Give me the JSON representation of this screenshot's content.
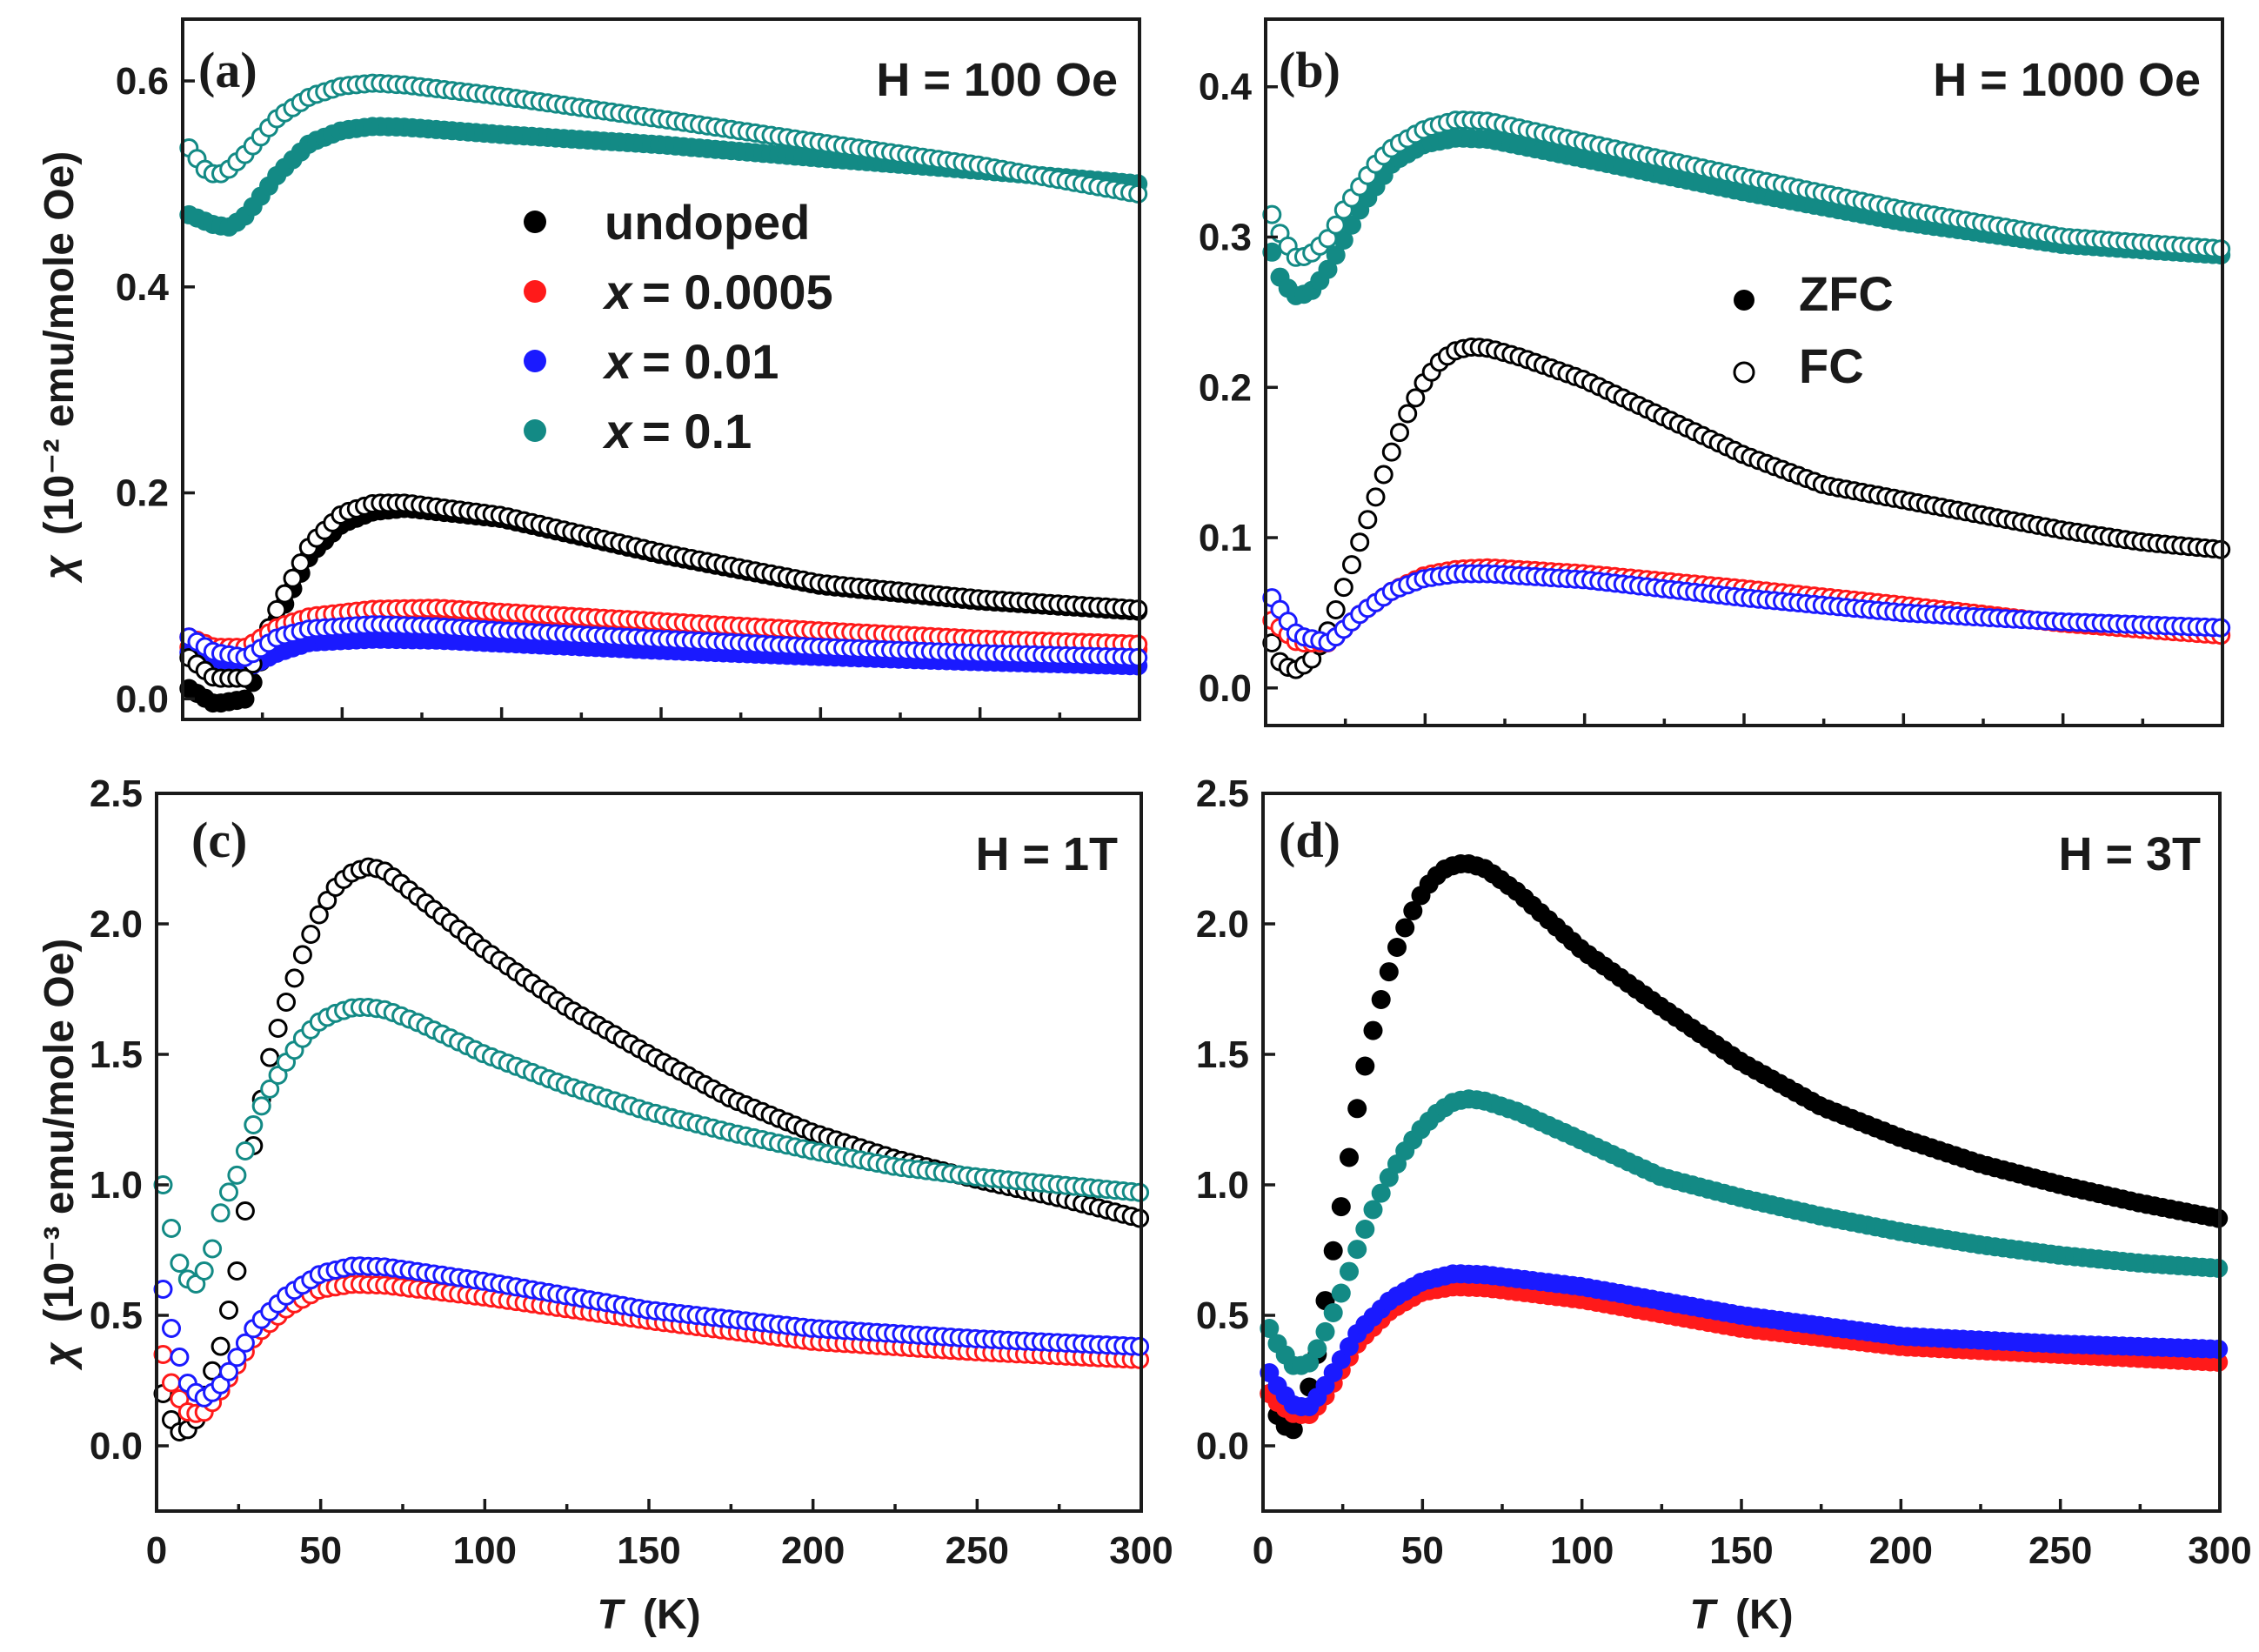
{
  "figure": {
    "ylabel_top_unit": "(10⁻² emu/mole Oe)",
    "ylabel_bottom_unit": "(10⁻³ emu/mole Oe)",
    "ylabel_symbol": "χ",
    "xlabel_symbol": "T",
    "xlabel_unit": "(K)",
    "legend_samples_x_prefix": "x",
    "legend_samples": [
      {
        "label": "undoped",
        "value": "",
        "color": "#000000"
      },
      {
        "label": "x",
        "value": "= 0.0005",
        "color": "#ff1a1a"
      },
      {
        "label": "x",
        "value": "= 0.01",
        "color": "#1a1aff"
      },
      {
        "label": "x",
        "value": "= 0.1",
        "color": "#138a85"
      }
    ],
    "legend_modes": [
      {
        "label": "ZFC",
        "filled": true
      },
      {
        "label": "FC",
        "filled": false
      }
    ]
  },
  "chart_data": [
    {
      "type": "scatter",
      "panel": "(a)",
      "field": "H = 100 Oe",
      "xlabel": "T (K)",
      "ylabel": "χ (10⁻² emu/mole Oe)",
      "xlim": [
        0,
        300
      ],
      "ylim": [
        -0.02,
        0.66
      ],
      "xticks": [
        0,
        50,
        100,
        150,
        200,
        250,
        300
      ],
      "yticks": [
        0.0,
        0.2,
        0.4,
        0.6
      ],
      "ytick_labels": [
        "0.0",
        "0.2",
        "0.4",
        "0.6"
      ],
      "series": [
        {
          "name": "undoped ZFC",
          "sample": "undoped",
          "mode": "ZFC",
          "color": "#000000",
          "T": [
            2,
            10,
            20,
            30,
            40,
            50,
            60,
            70,
            100,
            150,
            200,
            250,
            300
          ],
          "values": [
            0.01,
            -0.005,
            0.0,
            0.08,
            0.14,
            0.17,
            0.182,
            0.185,
            0.175,
            0.14,
            0.11,
            0.095,
            0.085
          ]
        },
        {
          "name": "undoped FC",
          "sample": "undoped",
          "mode": "FC",
          "color": "#000000",
          "T": [
            2,
            10,
            20,
            30,
            40,
            50,
            60,
            70,
            100,
            150,
            200,
            250,
            300
          ],
          "values": [
            0.04,
            0.02,
            0.02,
            0.09,
            0.15,
            0.18,
            0.19,
            0.19,
            0.178,
            0.142,
            0.112,
            0.097,
            0.087
          ]
        },
        {
          "name": "x = 0.0005 ZFC",
          "sample": "x = 0.0005",
          "mode": "ZFC",
          "color": "#ff1a1a",
          "T": [
            2,
            10,
            20,
            30,
            40,
            60,
            80,
            100,
            150,
            200,
            250,
            300
          ],
          "values": [
            0.05,
            0.04,
            0.04,
            0.06,
            0.07,
            0.075,
            0.076,
            0.072,
            0.064,
            0.058,
            0.052,
            0.048
          ]
        },
        {
          "name": "x = 0.0005 FC",
          "sample": "x = 0.0005",
          "mode": "FC",
          "color": "#ff1a1a",
          "T": [
            2,
            10,
            20,
            30,
            40,
            60,
            80,
            100,
            150,
            200,
            250,
            300
          ],
          "values": [
            0.06,
            0.05,
            0.05,
            0.07,
            0.08,
            0.087,
            0.088,
            0.084,
            0.075,
            0.066,
            0.058,
            0.053
          ]
        },
        {
          "name": "x = 0.01 ZFC",
          "sample": "x = 0.01",
          "mode": "ZFC",
          "color": "#1a1aff",
          "T": [
            2,
            10,
            20,
            30,
            40,
            60,
            80,
            100,
            150,
            200,
            250,
            300
          ],
          "values": [
            0.045,
            0.03,
            0.03,
            0.045,
            0.055,
            0.058,
            0.057,
            0.054,
            0.047,
            0.041,
            0.036,
            0.032
          ]
        },
        {
          "name": "x = 0.01 FC",
          "sample": "x = 0.01",
          "mode": "FC",
          "color": "#1a1aff",
          "T": [
            2,
            10,
            20,
            30,
            40,
            60,
            80,
            100,
            150,
            200,
            250,
            300
          ],
          "values": [
            0.06,
            0.045,
            0.04,
            0.06,
            0.068,
            0.072,
            0.07,
            0.066,
            0.058,
            0.05,
            0.044,
            0.04
          ]
        },
        {
          "name": "x = 0.1 ZFC",
          "sample": "x = 0.1",
          "mode": "ZFC",
          "color": "#138a85",
          "T": [
            2,
            10,
            15,
            20,
            30,
            40,
            50,
            60,
            70,
            100,
            150,
            200,
            250,
            300
          ],
          "values": [
            0.47,
            0.46,
            0.458,
            0.47,
            0.51,
            0.54,
            0.552,
            0.556,
            0.555,
            0.548,
            0.538,
            0.525,
            0.513,
            0.5
          ]
        },
        {
          "name": "x = 0.1 FC",
          "sample": "x = 0.1",
          "mode": "FC",
          "color": "#138a85",
          "T": [
            2,
            8,
            13,
            20,
            30,
            40,
            50,
            60,
            70,
            100,
            150,
            200,
            250,
            300
          ],
          "values": [
            0.535,
            0.51,
            0.51,
            0.53,
            0.565,
            0.585,
            0.595,
            0.598,
            0.596,
            0.585,
            0.563,
            0.54,
            0.518,
            0.49
          ]
        }
      ]
    },
    {
      "type": "scatter",
      "panel": "(b)",
      "field": "H = 1000 Oe",
      "xlabel": "T (K)",
      "ylabel": "χ (10⁻² emu/mole Oe)",
      "xlim": [
        0,
        300
      ],
      "ylim": [
        -0.025,
        0.445
      ],
      "xticks": [
        0,
        50,
        100,
        150,
        200,
        250,
        300
      ],
      "yticks": [
        0.0,
        0.1,
        0.2,
        0.3,
        0.4
      ],
      "ytick_labels": [
        "0.0",
        "0.1",
        "0.2",
        "0.3",
        "0.4"
      ],
      "series": [
        {
          "name": "undoped FC",
          "sample": "undoped",
          "mode": "FC",
          "color": "#000000",
          "T": [
            2,
            5,
            10,
            15,
            20,
            25,
            30,
            35,
            40,
            45,
            50,
            55,
            60,
            65,
            70,
            80,
            100,
            125,
            150,
            175,
            200,
            225,
            250,
            275,
            300
          ],
          "values": [
            0.03,
            0.015,
            0.012,
            0.02,
            0.04,
            0.07,
            0.1,
            0.13,
            0.16,
            0.185,
            0.205,
            0.218,
            0.225,
            0.227,
            0.226,
            0.22,
            0.205,
            0.18,
            0.155,
            0.135,
            0.125,
            0.115,
            0.105,
            0.097,
            0.092
          ]
        },
        {
          "name": "x = 0.0005 FC",
          "sample": "x = 0.0005",
          "mode": "FC",
          "color": "#ff1a1a",
          "T": [
            2,
            10,
            20,
            30,
            40,
            50,
            60,
            70,
            100,
            150,
            200,
            250,
            300
          ],
          "values": [
            0.045,
            0.03,
            0.03,
            0.05,
            0.065,
            0.075,
            0.079,
            0.08,
            0.076,
            0.066,
            0.055,
            0.043,
            0.035
          ]
        },
        {
          "name": "x = 0.01 FC",
          "sample": "x = 0.01",
          "mode": "FC",
          "color": "#1a1aff",
          "T": [
            2,
            10,
            20,
            30,
            40,
            50,
            60,
            70,
            100,
            150,
            200,
            250,
            300
          ],
          "values": [
            0.06,
            0.035,
            0.03,
            0.05,
            0.065,
            0.073,
            0.076,
            0.076,
            0.072,
            0.06,
            0.05,
            0.044,
            0.04
          ]
        },
        {
          "name": "x = 0.1 ZFC",
          "sample": "x = 0.1",
          "mode": "ZFC",
          "color": "#138a85",
          "T": [
            2,
            5,
            10,
            15,
            20,
            25,
            30,
            35,
            40,
            50,
            60,
            70,
            100,
            150,
            200,
            250,
            300
          ],
          "values": [
            0.29,
            0.27,
            0.26,
            0.265,
            0.28,
            0.3,
            0.32,
            0.335,
            0.35,
            0.362,
            0.366,
            0.365,
            0.352,
            0.33,
            0.31,
            0.295,
            0.288
          ]
        },
        {
          "name": "x = 0.1 FC",
          "sample": "x = 0.1",
          "mode": "FC",
          "color": "#138a85",
          "T": [
            2,
            5,
            10,
            15,
            20,
            25,
            30,
            35,
            40,
            50,
            60,
            70,
            100,
            150,
            200,
            250,
            300
          ],
          "values": [
            0.315,
            0.3,
            0.285,
            0.29,
            0.3,
            0.32,
            0.335,
            0.35,
            0.36,
            0.372,
            0.378,
            0.377,
            0.363,
            0.34,
            0.318,
            0.3,
            0.292
          ]
        }
      ]
    },
    {
      "type": "scatter",
      "panel": "(c)",
      "field": "H = 1T",
      "xlabel": "T (K)",
      "ylabel": "χ (10⁻³ emu/mole Oe)",
      "xlim": [
        0,
        300
      ],
      "ylim": [
        -0.25,
        2.5
      ],
      "xticks": [
        0,
        50,
        100,
        150,
        200,
        250,
        300
      ],
      "yticks": [
        0.0,
        0.5,
        1.0,
        1.5,
        2.0,
        2.5
      ],
      "ytick_labels": [
        "0.0",
        "0.5",
        "1.0",
        "1.5",
        "2.0",
        "2.5"
      ],
      "series": [
        {
          "name": "undoped FC",
          "sample": "undoped",
          "mode": "FC",
          "color": "#000000",
          "T": [
            2,
            5,
            8,
            12,
            16,
            20,
            25,
            30,
            35,
            40,
            45,
            50,
            55,
            60,
            65,
            70,
            80,
            100,
            125,
            150,
            175,
            200,
            225,
            250,
            275,
            300
          ],
          "values": [
            0.2,
            0.08,
            0.04,
            0.1,
            0.25,
            0.4,
            0.7,
            1.2,
            1.52,
            1.72,
            1.9,
            2.05,
            2.15,
            2.2,
            2.22,
            2.2,
            2.1,
            1.9,
            1.68,
            1.5,
            1.33,
            1.2,
            1.1,
            1.02,
            0.95,
            0.87
          ]
        },
        {
          "name": "x = 0.0005 FC",
          "sample": "x = 0.0005",
          "mode": "FC",
          "color": "#ff1a1a",
          "T": [
            2,
            5,
            10,
            15,
            20,
            25,
            30,
            40,
            50,
            60,
            70,
            100,
            150,
            200,
            250,
            300
          ],
          "values": [
            0.35,
            0.22,
            0.12,
            0.13,
            0.22,
            0.32,
            0.42,
            0.53,
            0.6,
            0.62,
            0.615,
            0.57,
            0.48,
            0.4,
            0.36,
            0.33
          ]
        },
        {
          "name": "x = 0.01 FC",
          "sample": "x = 0.01",
          "mode": "FC",
          "color": "#1a1aff",
          "T": [
            2,
            5,
            10,
            15,
            20,
            25,
            30,
            40,
            50,
            60,
            70,
            100,
            150,
            200,
            250,
            300
          ],
          "values": [
            0.6,
            0.42,
            0.22,
            0.18,
            0.24,
            0.35,
            0.46,
            0.58,
            0.66,
            0.69,
            0.685,
            0.63,
            0.52,
            0.45,
            0.41,
            0.38
          ]
        },
        {
          "name": "x = 0.1 FC",
          "sample": "x = 0.1",
          "mode": "FC",
          "color": "#138a85",
          "T": [
            2,
            5,
            8,
            12,
            16,
            20,
            25,
            30,
            35,
            40,
            45,
            50,
            55,
            60,
            65,
            70,
            80,
            100,
            125,
            150,
            175,
            200,
            225,
            250,
            275,
            300
          ],
          "values": [
            1.0,
            0.8,
            0.65,
            0.62,
            0.7,
            0.92,
            1.05,
            1.25,
            1.38,
            1.48,
            1.57,
            1.63,
            1.66,
            1.68,
            1.68,
            1.67,
            1.62,
            1.5,
            1.38,
            1.28,
            1.2,
            1.13,
            1.07,
            1.03,
            1.0,
            0.97
          ]
        }
      ]
    },
    {
      "type": "scatter",
      "panel": "(d)",
      "field": "H = 3T",
      "xlabel": "T (K)",
      "ylabel": "χ (10⁻³ emu/mole Oe)",
      "xlim": [
        0,
        300
      ],
      "ylim": [
        -0.25,
        2.5
      ],
      "xticks": [
        0,
        50,
        100,
        150,
        200,
        250,
        300
      ],
      "yticks": [
        0.0,
        0.5,
        1.0,
        1.5,
        2.0,
        2.5
      ],
      "ytick_labels": [
        "0.0",
        "0.5",
        "1.0",
        "1.5",
        "2.0",
        "2.5"
      ],
      "series": [
        {
          "name": "undoped ZFC",
          "sample": "undoped",
          "mode": "ZFC",
          "color": "#000000",
          "T": [
            2,
            5,
            9,
            13,
            17,
            21,
            25,
            29,
            33,
            37,
            41,
            45,
            49,
            53,
            57,
            61,
            65,
            70,
            80,
            100,
            125,
            150,
            175,
            200,
            225,
            250,
            275,
            300
          ],
          "values": [
            0.2,
            0.1,
            0.05,
            0.15,
            0.35,
            0.68,
            0.95,
            1.26,
            1.52,
            1.71,
            1.88,
            2.0,
            2.1,
            2.17,
            2.21,
            2.23,
            2.23,
            2.21,
            2.12,
            1.9,
            1.68,
            1.47,
            1.3,
            1.18,
            1.08,
            1.0,
            0.93,
            0.87
          ]
        },
        {
          "name": "x = 0.0005 ZFC",
          "sample": "x = 0.0005",
          "mode": "ZFC",
          "color": "#ff1a1a",
          "T": [
            2,
            5,
            10,
            15,
            20,
            25,
            30,
            40,
            50,
            60,
            70,
            100,
            150,
            200,
            250,
            300
          ],
          "values": [
            0.2,
            0.16,
            0.12,
            0.12,
            0.2,
            0.3,
            0.4,
            0.52,
            0.59,
            0.61,
            0.605,
            0.56,
            0.45,
            0.38,
            0.35,
            0.32
          ]
        },
        {
          "name": "x = 0.01 ZFC",
          "sample": "x = 0.01",
          "mode": "ZFC",
          "color": "#1a1aff",
          "T": [
            2,
            5,
            10,
            15,
            20,
            25,
            30,
            40,
            50,
            60,
            70,
            100,
            150,
            200,
            250,
            300
          ],
          "values": [
            0.28,
            0.22,
            0.15,
            0.15,
            0.24,
            0.34,
            0.44,
            0.56,
            0.63,
            0.66,
            0.655,
            0.61,
            0.5,
            0.42,
            0.39,
            0.37
          ]
        },
        {
          "name": "x = 0.1 ZFC",
          "sample": "x = 0.1",
          "mode": "ZFC",
          "color": "#138a85",
          "T": [
            2,
            5,
            10,
            15,
            20,
            25,
            30,
            35,
            40,
            45,
            50,
            55,
            60,
            65,
            70,
            80,
            100,
            125,
            150,
            175,
            200,
            225,
            250,
            275,
            300
          ],
          "values": [
            0.45,
            0.38,
            0.3,
            0.32,
            0.45,
            0.6,
            0.77,
            0.92,
            1.04,
            1.14,
            1.22,
            1.28,
            1.32,
            1.33,
            1.32,
            1.28,
            1.17,
            1.03,
            0.95,
            0.88,
            0.82,
            0.77,
            0.73,
            0.7,
            0.68
          ]
        }
      ]
    }
  ]
}
